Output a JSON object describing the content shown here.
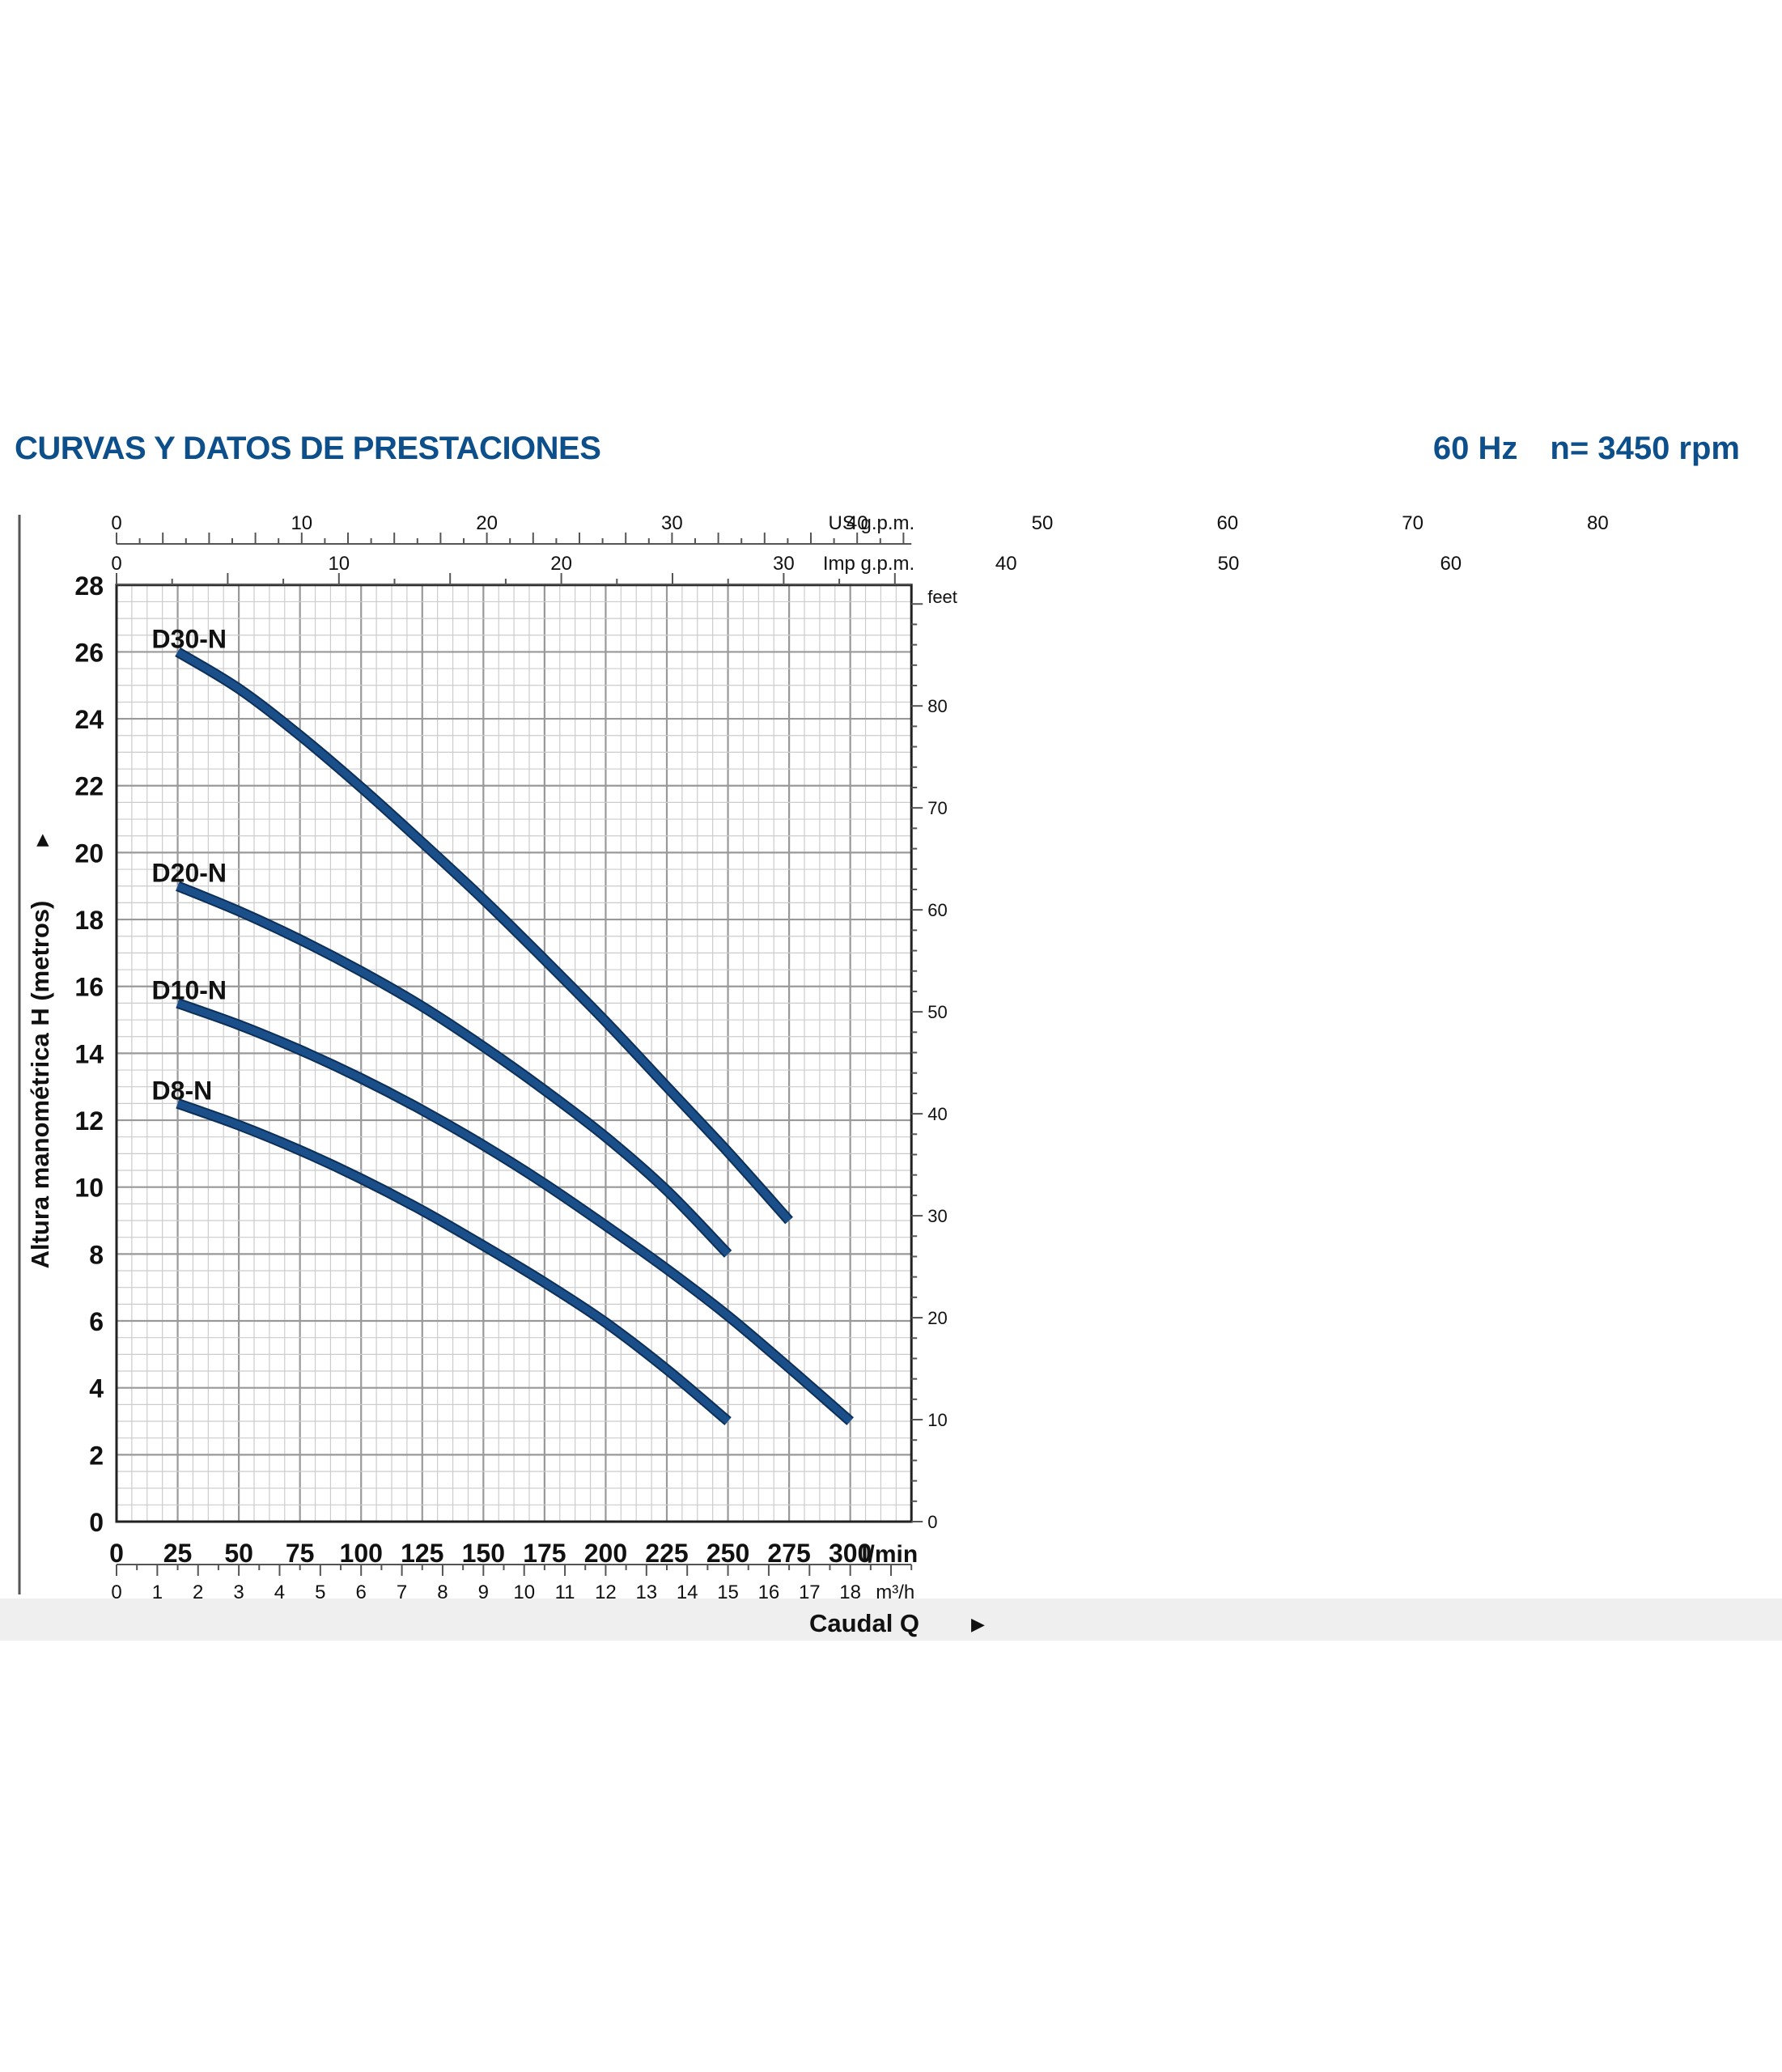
{
  "header": {
    "title": "CURVAS Y DATOS DE PRESTACIONES",
    "frequency": "60 Hz",
    "speed": "n= 3450 rpm"
  },
  "colors": {
    "title": "#0d4f8b",
    "curve": "#1b4f8a",
    "curve_edge": "#0c2f57",
    "grid_major": "#999999",
    "grid_minor": "#cccccc",
    "text": "#111111"
  },
  "chart_data": {
    "type": "line",
    "xlabel": "Caudal Q",
    "ylabel": "Altura manométrica H (metros)",
    "x_unit": "l/min",
    "xlim": [
      0,
      325
    ],
    "ylim": [
      0,
      28
    ],
    "x_ticks": [
      0,
      25,
      50,
      75,
      100,
      125,
      150,
      175,
      200,
      225,
      250,
      275,
      300
    ],
    "y_ticks": [
      0,
      2,
      4,
      6,
      8,
      10,
      12,
      14,
      16,
      18,
      20,
      22,
      24,
      26,
      28
    ],
    "grid": true,
    "secondary_axes": {
      "m3h": {
        "label": "m³/h",
        "ticks": [
          0,
          1,
          2,
          3,
          4,
          5,
          6,
          7,
          8,
          9,
          10,
          11,
          12,
          13,
          14,
          15,
          16,
          17,
          18
        ]
      },
      "us_gpm": {
        "label": "US g.p.m.",
        "ticks": [
          0,
          10,
          20,
          30,
          40,
          50,
          60,
          70,
          80
        ]
      },
      "imp_gpm": {
        "label": "Imp g.p.m.",
        "ticks": [
          0,
          10,
          20,
          30,
          40,
          50,
          60
        ]
      },
      "feet": {
        "label": "feet",
        "ticks": [
          0,
          10,
          20,
          30,
          40,
          50,
          60,
          70,
          80
        ]
      }
    },
    "series": [
      {
        "name": "D30-N",
        "x": [
          25,
          50,
          75,
          100,
          125,
          150,
          175,
          200,
          225,
          250,
          275
        ],
        "y": [
          26.0,
          24.9,
          23.5,
          21.95,
          20.3,
          18.6,
          16.8,
          14.95,
          13.0,
          11.05,
          9.0
        ]
      },
      {
        "name": "D20-N",
        "x": [
          25,
          50,
          75,
          100,
          125,
          150,
          175,
          200,
          225,
          250
        ],
        "y": [
          19.0,
          18.25,
          17.4,
          16.45,
          15.4,
          14.2,
          12.9,
          11.5,
          9.9,
          8.0
        ]
      },
      {
        "name": "D10-N",
        "x": [
          25,
          50,
          75,
          100,
          125,
          150,
          175,
          200,
          225,
          250,
          275,
          300
        ],
        "y": [
          15.5,
          14.85,
          14.1,
          13.25,
          12.3,
          11.25,
          10.1,
          8.85,
          7.55,
          6.15,
          4.6,
          3.0
        ]
      },
      {
        "name": "D8-N",
        "x": [
          25,
          50,
          75,
          100,
          125,
          150,
          175,
          200,
          225,
          250
        ],
        "y": [
          12.5,
          11.85,
          11.1,
          10.25,
          9.3,
          8.25,
          7.15,
          5.95,
          4.55,
          3.0
        ]
      }
    ]
  }
}
